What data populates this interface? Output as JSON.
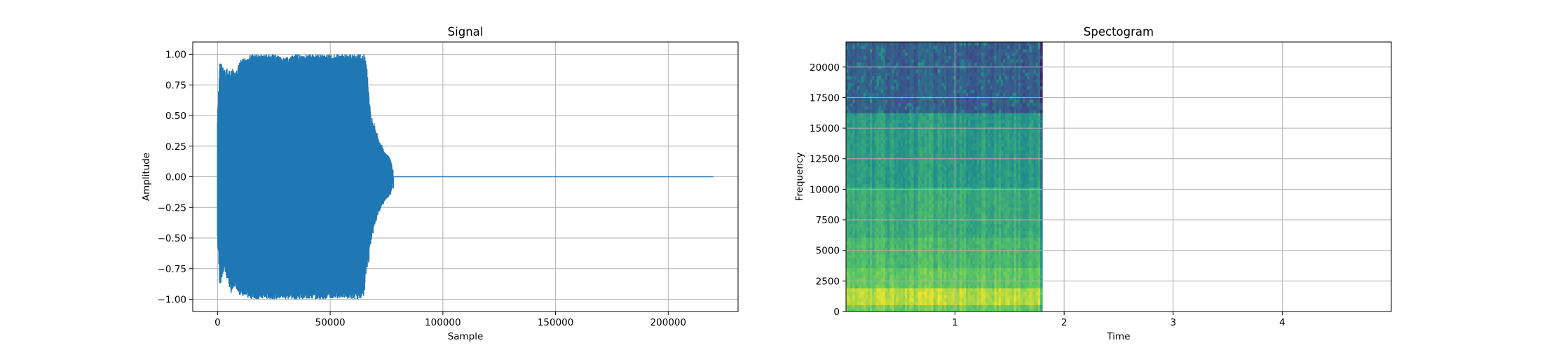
{
  "chart_data": [
    {
      "type": "line",
      "title": "Signal",
      "xlabel": "Sample",
      "ylabel": "Amplitude",
      "xlim": [
        -11000,
        231000
      ],
      "ylim": [
        -1.1,
        1.1
      ],
      "grid": true,
      "color": "#1f77b4",
      "xticks": [
        0,
        50000,
        100000,
        150000,
        200000
      ],
      "xtick_labels": [
        "0",
        "50000",
        "100000",
        "150000",
        "200000"
      ],
      "yticks": [
        -1.0,
        -0.75,
        -0.5,
        -0.25,
        0.0,
        0.25,
        0.5,
        0.75,
        1.0
      ],
      "ytick_labels": [
        "−1.00",
        "−0.75",
        "−0.50",
        "−0.25",
        "0.00",
        "0.25",
        "0.50",
        "0.75",
        "1.00"
      ],
      "series": [
        {
          "name": "signal",
          "envelope_x": [
            0,
            1000,
            3000,
            6000,
            8000,
            10000,
            15000,
            20000,
            25000,
            30000,
            35000,
            40000,
            45000,
            50000,
            55000,
            60000,
            63000,
            65000,
            66000,
            67000,
            68000,
            70000,
            72000,
            74000,
            76000,
            77000,
            77500,
            78000
          ],
          "envelope_max": [
            0.5,
            0.95,
            0.88,
            0.9,
            0.85,
            0.95,
            1.0,
            1.0,
            1.0,
            0.97,
            1.0,
            1.0,
            1.0,
            1.0,
            1.0,
            1.0,
            1.0,
            1.0,
            0.95,
            0.75,
            0.5,
            0.42,
            0.3,
            0.22,
            0.18,
            0.14,
            0.1,
            0.0
          ],
          "envelope_min": [
            -0.55,
            -0.9,
            -0.78,
            -0.95,
            -0.9,
            -0.97,
            -1.0,
            -1.0,
            -1.0,
            -1.0,
            -1.0,
            -1.0,
            -1.0,
            -1.0,
            -0.99,
            -1.0,
            -1.0,
            -0.97,
            -0.8,
            -0.72,
            -0.55,
            -0.4,
            -0.28,
            -0.22,
            -0.17,
            -0.14,
            -0.1,
            0.0
          ],
          "tail_x": [
            78000,
            220000
          ],
          "tail_y": [
            0.0,
            0.0
          ]
        }
      ]
    },
    {
      "type": "heatmap",
      "title": "Spectogram",
      "xlabel": "Time",
      "ylabel": "Frequency",
      "xlim": [
        0,
        5
      ],
      "ylim": [
        0,
        22050
      ],
      "data_xlim": [
        0,
        1.8
      ],
      "grid": true,
      "xticks": [
        1,
        2,
        3,
        4
      ],
      "xtick_labels": [
        "1",
        "2",
        "3",
        "4"
      ],
      "yticks": [
        0,
        2500,
        5000,
        7500,
        10000,
        12500,
        15000,
        17500,
        20000
      ],
      "ytick_labels": [
        "0",
        "2500",
        "5000",
        "7500",
        "10000",
        "12500",
        "15000",
        "17500",
        "20000"
      ],
      "colormap": "viridis",
      "frequency_bands": [
        {
          "from": 0,
          "to": 500,
          "level": 0.78
        },
        {
          "from": 500,
          "to": 1800,
          "level": 0.9
        },
        {
          "from": 1800,
          "to": 3500,
          "level": 0.75
        },
        {
          "from": 3500,
          "to": 6000,
          "level": 0.68
        },
        {
          "from": 6000,
          "to": 10000,
          "level": 0.62
        },
        {
          "from": 10000,
          "to": 16000,
          "level": 0.55
        },
        {
          "from": 16000,
          "to": 22050,
          "level": 0.3
        }
      ]
    }
  ]
}
